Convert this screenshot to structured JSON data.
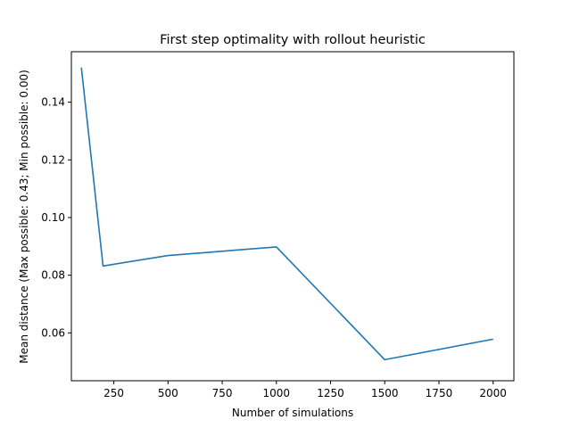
{
  "chart_data": {
    "type": "line",
    "title": "First step optimality with rollout heuristic",
    "xlabel": "Number of simulations",
    "ylabel": "Mean distance (Max possible: 0.43; Min possible: 0.00)",
    "xlim": [
      54,
      2096
    ],
    "ylim": [
      0.0434,
      0.1575
    ],
    "xticks": [
      250,
      500,
      750,
      1000,
      1250,
      1500,
      1750,
      2000
    ],
    "xtick_labels": [
      "250",
      "500",
      "750",
      "1000",
      "1250",
      "1500",
      "1750",
      "2000"
    ],
    "yticks": [
      0.06,
      0.08,
      0.1,
      0.12,
      0.14
    ],
    "ytick_labels": [
      "0.06",
      "0.08",
      "0.10",
      "0.12",
      "0.14"
    ],
    "grid": false,
    "series": [
      {
        "color": "#1f77b4",
        "x": [
          100,
          200,
          500,
          1000,
          1500,
          2000
        ],
        "y": [
          0.152,
          0.0832,
          0.0868,
          0.0898,
          0.0507,
          0.0578
        ]
      }
    ]
  }
}
